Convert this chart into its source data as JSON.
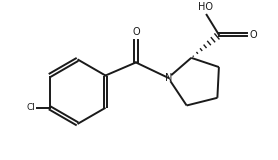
{
  "background": "#ffffff",
  "line_color": "#1a1a1a",
  "line_width": 1.4,
  "figsize": [
    2.78,
    1.6
  ],
  "dpi": 100,
  "xlim": [
    0.0,
    9.0
  ],
  "ylim": [
    0.5,
    5.5
  ]
}
